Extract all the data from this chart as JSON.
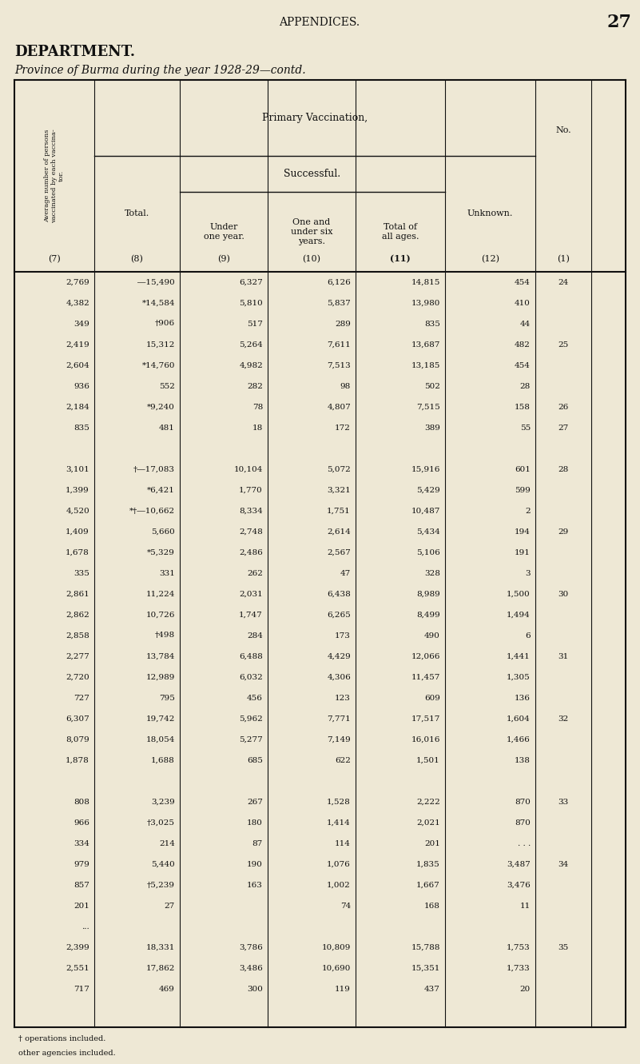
{
  "page_title": "APPENDICES.",
  "page_number": "27",
  "dept_title": "DEPARTMENT.",
  "subtitle": "Province of Burma during the year 1928-29—contd.",
  "col_headers": {
    "main": "Primary Vaccination,",
    "successful": "Successful.",
    "col7": "(7)",
    "col8": "(8)",
    "col9": "(9)",
    "col10": "(10)",
    "col11": "(11)",
    "col12": "(12)",
    "col1": "(1)"
  },
  "col_labels": {
    "col7": "Average number of persons\nvaccinated by each vaccina-\ntor.",
    "col8": "Total.",
    "col9": "Under\none year.",
    "col10": "One and\nunder six\nyears.",
    "col11": "Total of\nall ages.",
    "col12": "Unknown.",
    "col1": "No."
  },
  "rows": [
    {
      "c7": "2,769",
      "c8": "―15,490",
      "c9": "6,327",
      "c10": "6,126",
      "c11": "14,815",
      "c12": "454",
      "c1": "24"
    },
    {
      "c7": "4,382",
      "c8": "*14,584",
      "c9": "5,810",
      "c10": "5,837",
      "c11": "13,980",
      "c12": "410",
      "c1": ""
    },
    {
      "c7": "349",
      "c8": "†906",
      "c9": "517",
      "c10": "289",
      "c11": "835",
      "c12": "44",
      "c1": ""
    },
    {
      "c7": "2,419",
      "c8": "15,312",
      "c9": "5,264",
      "c10": "7,611",
      "c11": "13,687",
      "c12": "482",
      "c1": "25"
    },
    {
      "c7": "2,604",
      "c8": "*14,760",
      "c9": "4,982",
      "c10": "7,513",
      "c11": "13,185",
      "c12": "454",
      "c1": ""
    },
    {
      "c7": "936",
      "c8": "552",
      "c9": "282",
      "c10": "98",
      "c11": "502",
      "c12": "28",
      "c1": ""
    },
    {
      "c7": "2,184",
      "c8": "*9,240",
      "c9": "78",
      "c10": "4,807",
      "c11": "7,515",
      "c12": "158",
      "c1": "26"
    },
    {
      "c7": "835",
      "c8": "481",
      "c9": "18",
      "c10": "172",
      "c11": "389",
      "c12": "55",
      "c1": "27"
    },
    {
      "c7": "",
      "c8": "",
      "c9": "",
      "c10": "",
      "c11": "",
      "c12": "",
      "c1": ""
    },
    {
      "c7": "3,101",
      "c8": "†―17,083",
      "c9": "10,104",
      "c10": "5,072",
      "c11": "15,916",
      "c12": "601",
      "c1": "28"
    },
    {
      "c7": "1,399",
      "c8": "*6,421",
      "c9": "1,770",
      "c10": "3,321",
      "c11": "5,429",
      "c12": "599",
      "c1": ""
    },
    {
      "c7": "4,520",
      "c8": "*†―10,662",
      "c9": "8,334",
      "c10": "1,751",
      "c11": "10,487",
      "c12": "2",
      "c1": ""
    },
    {
      "c7": "1,409",
      "c8": "5,660",
      "c9": "2,748",
      "c10": "2,614",
      "c11": "5,434",
      "c12": "194",
      "c1": "29"
    },
    {
      "c7": "1,678",
      "c8": "*5,329",
      "c9": "2,486",
      "c10": "2,567",
      "c11": "5,106",
      "c12": "191",
      "c1": ""
    },
    {
      "c7": "335",
      "c8": "331",
      "c9": "262",
      "c10": "47",
      "c11": "328",
      "c12": "3",
      "c1": ""
    },
    {
      "c7": "2,861",
      "c8": "11,224",
      "c9": "2,031",
      "c10": "6,438",
      "c11": "8,989",
      "c12": "1,500",
      "c1": "30"
    },
    {
      "c7": "2,862",
      "c8": "10,726",
      "c9": "1,747",
      "c10": "6,265",
      "c11": "8,499",
      "c12": "1,494",
      "c1": ""
    },
    {
      "c7": "2,858",
      "c8": "†498",
      "c9": "284",
      "c10": "173",
      "c11": "490",
      "c12": "6",
      "c1": ""
    },
    {
      "c7": "2,277",
      "c8": "13,784",
      "c9": "6,488",
      "c10": "4,429",
      "c11": "12,066",
      "c12": "1,441",
      "c1": "31"
    },
    {
      "c7": "2,720",
      "c8": "12,989",
      "c9": "6,032",
      "c10": "4,306",
      "c11": "11,457",
      "c12": "1,305",
      "c1": ""
    },
    {
      "c7": "727",
      "c8": "795",
      "c9": "456",
      "c10": "123",
      "c11": "609",
      "c12": "136",
      "c1": ""
    },
    {
      "c7": "6,307",
      "c8": "19,742",
      "c9": "5,962",
      "c10": "7,771",
      "c11": "17,517",
      "c12": "1,604",
      "c1": "32"
    },
    {
      "c7": "8,079",
      "c8": "18,054",
      "c9": "5,277",
      "c10": "7,149",
      "c11": "16,016",
      "c12": "1,466",
      "c1": ""
    },
    {
      "c7": "1,878",
      "c8": "1,688",
      "c9": "685",
      "c10": "622",
      "c11": "1,501",
      "c12": "138",
      "c1": ""
    },
    {
      "c7": "",
      "c8": "",
      "c9": "",
      "c10": "",
      "c11": "",
      "c12": "",
      "c1": ""
    },
    {
      "c7": "808",
      "c8": "3,239",
      "c9": "267",
      "c10": "1,528",
      "c11": "2,222",
      "c12": "870",
      "c1": "33"
    },
    {
      "c7": "966",
      "c8": "†3,025",
      "c9": "180",
      "c10": "1,414",
      "c11": "2,021",
      "c12": "870",
      "c1": ""
    },
    {
      "c7": "334",
      "c8": "214",
      "c9": "87",
      "c10": "114",
      "c11": "201",
      "c12": ". . .",
      "c1": ""
    },
    {
      "c7": "979",
      "c8": "5,440",
      "c9": "190",
      "c10": "1,076",
      "c11": "1,835",
      "c12": "3,487",
      "c1": "34"
    },
    {
      "c7": "857",
      "c8": "†5,239",
      "c9": "163",
      "c10": "1,002",
      "c11": "1,667",
      "c12": "3,476",
      "c1": ""
    },
    {
      "c7": "201",
      "c8": "27",
      "c9": "",
      "c10": "74",
      "c11": "168",
      "c12": "11",
      "c1": ""
    },
    {
      "c7": "...",
      "c8": "",
      "c9": "",
      "c10": "",
      "c11": "",
      "c12": "",
      "c1": ""
    },
    {
      "c7": "2,399",
      "c8": "18,331",
      "c9": "3,786",
      "c10": "10,809",
      "c11": "15,788",
      "c12": "1,753",
      "c1": "35"
    },
    {
      "c7": "2,551",
      "c8": "17,862",
      "c9": "3,486",
      "c10": "10,690",
      "c11": "15,351",
      "c12": "1,733",
      "c1": ""
    },
    {
      "c7": "717",
      "c8": "469",
      "c9": "300",
      "c10": "119",
      "c11": "437",
      "c12": "20",
      "c1": ""
    }
  ],
  "footnote1": "† operations included.",
  "footnote2": "other agencies included.",
  "bg_color": "#eee8d5",
  "text_color": "#111111",
  "line_color": "#111111"
}
